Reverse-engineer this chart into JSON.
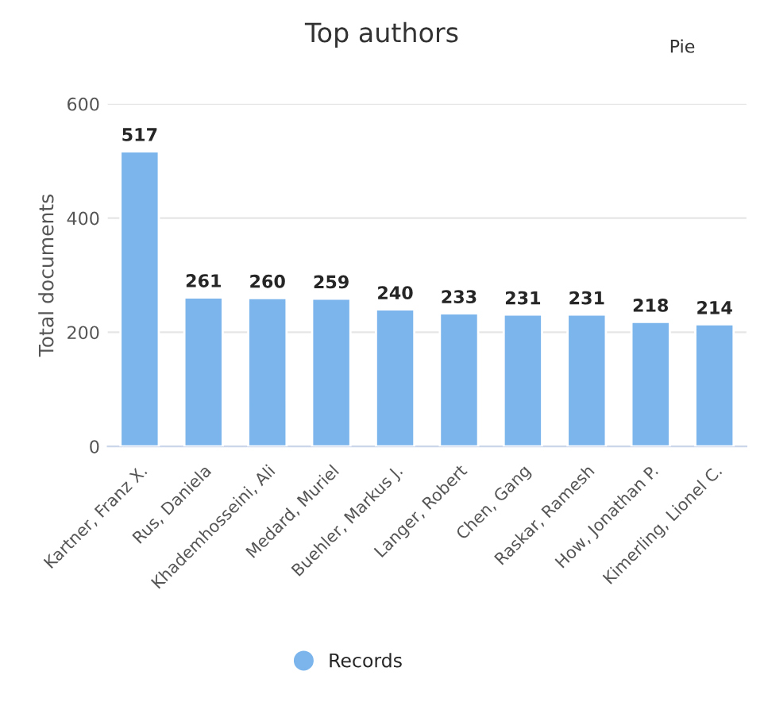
{
  "chart_data": {
    "type": "bar",
    "title": "Top authors",
    "ylabel": "Total documents",
    "categories": [
      "Kartner, Franz X.",
      "Rus, Daniela",
      "Khademhosseini, Ali",
      "Medard, Muriel",
      "Buehler, Markus J.",
      "Langer, Robert",
      "Chen, Gang",
      "Raskar, Ramesh",
      "How, Jonathan P.",
      "Kimerling, Lionel C."
    ],
    "series": [
      {
        "name": "Records",
        "color": "#7cb5ec",
        "values": [
          517,
          261,
          260,
          259,
          240,
          233,
          231,
          231,
          218,
          214
        ]
      }
    ],
    "ylim": [
      0,
      600
    ],
    "yticks": [
      0,
      200,
      400,
      600
    ],
    "grid": "y",
    "legend": "bottom",
    "data_labels": true,
    "annotations": [
      "Pie"
    ]
  }
}
